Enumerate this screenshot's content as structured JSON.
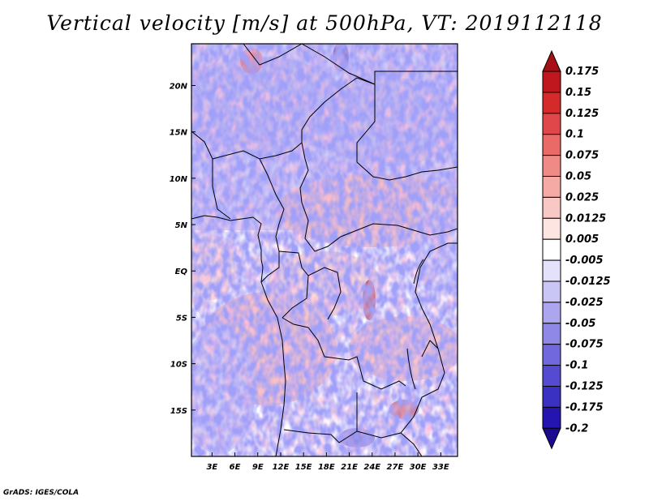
{
  "title": "Vertical velocity [m/s] at 500hPa, VT: 2019112118",
  "credit": "GrADS: IGES/COLA",
  "chart_data": {
    "type": "heatmap",
    "title": "Vertical velocity [m/s] at 500hPa, VT: 2019112118",
    "x_tick_labels": [
      "3E",
      "6E",
      "9E",
      "12E",
      "15E",
      "18E",
      "21E",
      "24E",
      "27E",
      "30E",
      "33E"
    ],
    "x_ticks": [
      3,
      6,
      9,
      12,
      15,
      18,
      21,
      24,
      27,
      30,
      33
    ],
    "y_tick_labels": [
      "20N",
      "15N",
      "10N",
      "5N",
      "EQ",
      "5S",
      "10S",
      "15S"
    ],
    "y_ticks": [
      20,
      15,
      10,
      5,
      0,
      -5,
      -10,
      -15
    ],
    "xlim": [
      0.3,
      35.2
    ],
    "ylim": [
      -20,
      24.5
    ],
    "colorbar_labels": [
      "0.175",
      "0.15",
      "0.125",
      "0.1",
      "0.075",
      "0.05",
      "0.025",
      "0.0125",
      "0.005",
      "-0.005",
      "-0.0125",
      "-0.025",
      "-0.05",
      "-0.075",
      "-0.1",
      "-0.125",
      "-0.175",
      "-0.2"
    ],
    "colorbar_levels": [
      0.175,
      0.15,
      0.125,
      0.1,
      0.075,
      0.05,
      0.025,
      0.0125,
      0.005,
      -0.005,
      -0.0125,
      -0.025,
      -0.05,
      -0.075,
      -0.1,
      -0.125,
      -0.175,
      -0.2
    ],
    "colorbar_colors": [
      "#a50f15",
      "#c0161e",
      "#d52a2a",
      "#e0474a",
      "#ea6a68",
      "#f08a86",
      "#f5aaa6",
      "#fac8c4",
      "#fde5e2",
      "#ffffff",
      "#e4e2fb",
      "#c9c6f6",
      "#aba6ee",
      "#8f88e6",
      "#7068dc",
      "#544bd0",
      "#3a31c2",
      "#2414b0",
      "#1a0a90"
    ]
  }
}
